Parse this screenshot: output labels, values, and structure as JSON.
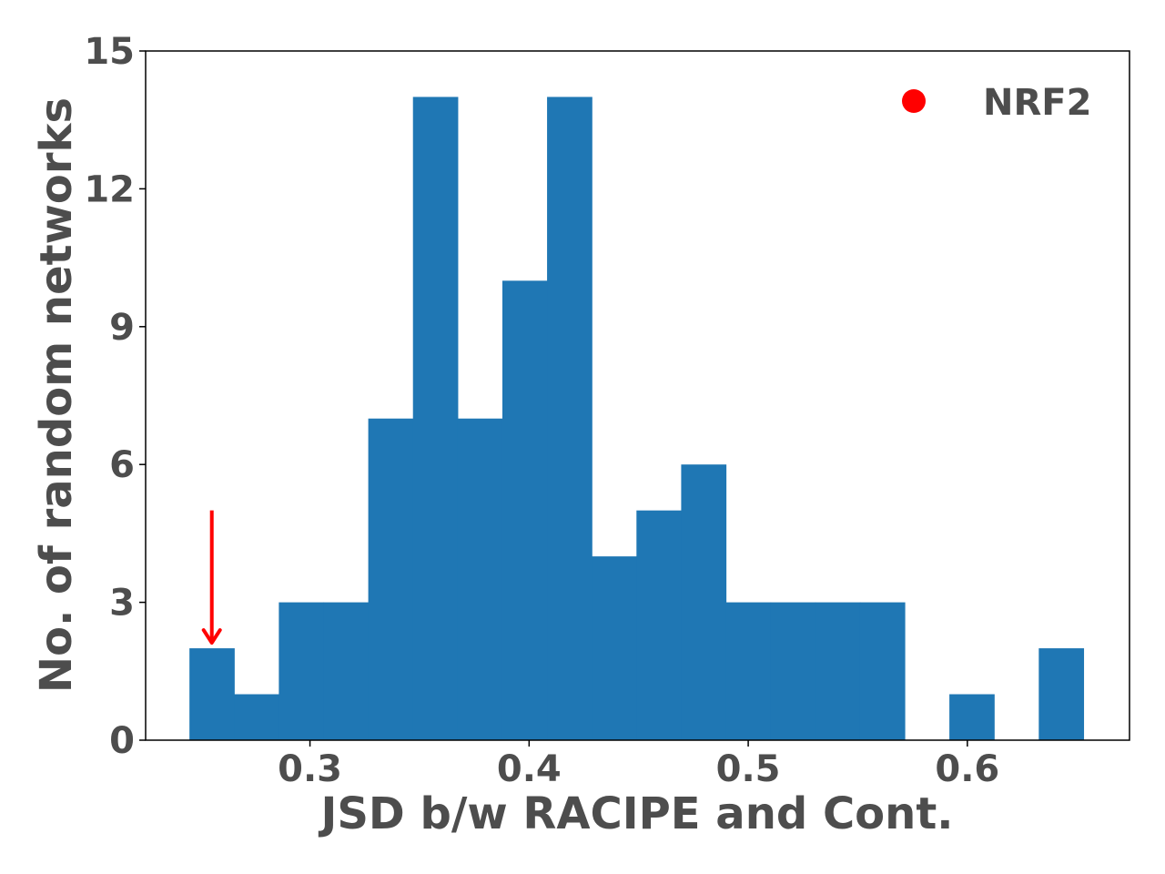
{
  "chart_data": {
    "type": "bar",
    "subtype": "histogram",
    "xlabel": "JSD b/w RACIPE and Cont.",
    "ylabel": "No. of random networks",
    "xlim": [
      0.225,
      0.674
    ],
    "ylim": [
      0,
      15
    ],
    "xticks": [
      "0.3",
      "0.4",
      "0.5",
      "0.6"
    ],
    "yticks": [
      "0",
      "3",
      "6",
      "9",
      "12",
      "15"
    ],
    "bin_edges": [
      0.245,
      0.2654,
      0.2858,
      0.3062,
      0.3266,
      0.347,
      0.3674,
      0.3878,
      0.4082,
      0.4286,
      0.449,
      0.4694,
      0.4898,
      0.5102,
      0.5306,
      0.551,
      0.5714,
      0.5918,
      0.6122,
      0.6326,
      0.653
    ],
    "values": [
      2,
      1,
      3,
      3,
      7,
      14,
      7,
      10,
      14,
      4,
      5,
      6,
      3,
      3,
      3,
      3,
      0,
      1,
      0,
      2
    ],
    "bar_color": "#1f77b4",
    "legend": {
      "label": "NRF2",
      "marker": "circle",
      "color": "#ff0000",
      "position": "top-right"
    },
    "annotation": {
      "type": "arrow",
      "color": "#ff0000",
      "x": 0.2552,
      "y_from": 5,
      "y_to": 2
    },
    "grid": false
  }
}
